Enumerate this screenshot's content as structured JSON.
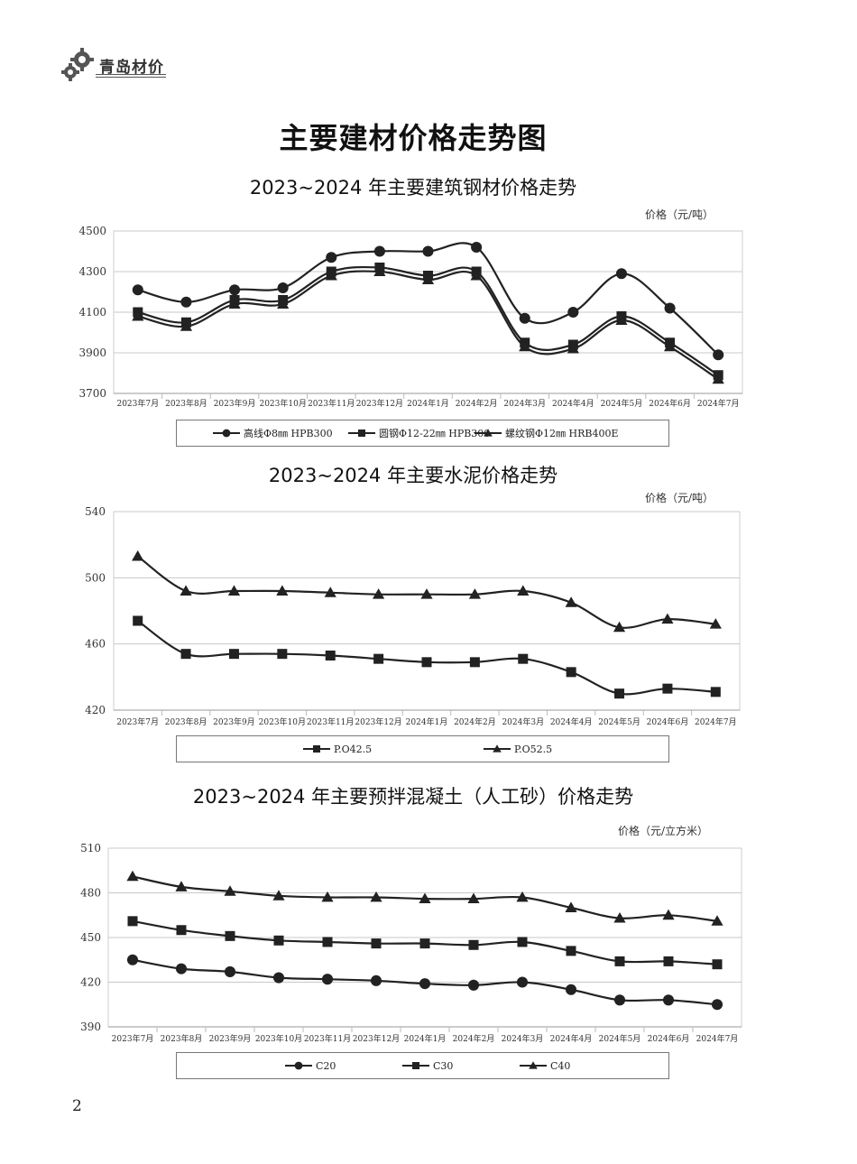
{
  "header": {
    "brand": "青岛材价",
    "logo_icon": "gear-icon"
  },
  "main_title": "主要建材价格走势图",
  "page_number": "2",
  "chart_data": [
    {
      "type": "line",
      "title": "2023~2024 年主要建筑钢材价格走势",
      "unit": "价格（元/吨）",
      "categories": [
        "2023年7月",
        "2023年8月",
        "2023年9月",
        "2023年10月",
        "2023年11月",
        "2023年12月",
        "2024年1月",
        "2024年2月",
        "2024年3月",
        "2024年4月",
        "2024年5月",
        "2024年6月",
        "2024年7月"
      ],
      "ylim": [
        3700,
        4500
      ],
      "yticks": [
        3700,
        3900,
        4100,
        4300,
        4500
      ],
      "grid": true,
      "legend_position": "bottom",
      "series": [
        {
          "name": "高线Φ8㎜ HPB300",
          "marker": "circle",
          "values": [
            4210,
            4150,
            4210,
            4220,
            4370,
            4400,
            4400,
            4420,
            4070,
            4100,
            4290,
            4120,
            3890
          ]
        },
        {
          "name": "圆钢Φ12-22㎜ HPB300",
          "marker": "square",
          "values": [
            4100,
            4050,
            4160,
            4160,
            4300,
            4320,
            4280,
            4300,
            3950,
            3940,
            4080,
            3950,
            3790
          ]
        },
        {
          "name": "螺纹钢Φ12㎜ HRB400E",
          "marker": "triangle",
          "values": [
            4080,
            4030,
            4140,
            4140,
            4280,
            4300,
            4260,
            4280,
            3930,
            3920,
            4060,
            3930,
            3770
          ]
        }
      ]
    },
    {
      "type": "line",
      "title": "2023~2024 年主要水泥价格走势",
      "unit": "价格（元/吨）",
      "categories": [
        "2023年7月",
        "2023年8月",
        "2023年9月",
        "2023年10月",
        "2023年11月",
        "2023年12月",
        "2024年1月",
        "2024年2月",
        "2024年3月",
        "2024年4月",
        "2024年5月",
        "2024年6月",
        "2024年7月"
      ],
      "ylim": [
        420,
        540
      ],
      "yticks": [
        420,
        460,
        500,
        540
      ],
      "grid": true,
      "legend_position": "bottom",
      "series": [
        {
          "name": "P.O42.5",
          "marker": "square",
          "values": [
            474,
            454,
            454,
            454,
            453,
            451,
            449,
            449,
            451,
            443,
            430,
            433,
            431
          ]
        },
        {
          "name": "P.O52.5",
          "marker": "triangle",
          "values": [
            513,
            492,
            492,
            492,
            491,
            490,
            490,
            490,
            492,
            485,
            470,
            475,
            472
          ]
        }
      ]
    },
    {
      "type": "line",
      "title": "2023~2024 年主要预拌混凝土（人工砂）价格走势",
      "unit": "价格（元/立方米）",
      "categories": [
        "2023年7月",
        "2023年8月",
        "2023年9月",
        "2023年10月",
        "2023年11月",
        "2023年12月",
        "2024年1月",
        "2024年2月",
        "2024年3月",
        "2024年4月",
        "2024年5月",
        "2024年6月",
        "2024年7月"
      ],
      "ylim": [
        390,
        510
      ],
      "yticks": [
        390,
        420,
        450,
        480,
        510
      ],
      "grid": true,
      "legend_position": "bottom",
      "series": [
        {
          "name": "C20",
          "marker": "circle",
          "values": [
            435,
            429,
            427,
            423,
            422,
            421,
            419,
            418,
            420,
            415,
            408,
            408,
            405
          ]
        },
        {
          "name": "C30",
          "marker": "square",
          "values": [
            461,
            455,
            451,
            448,
            447,
            446,
            446,
            445,
            447,
            441,
            434,
            434,
            432
          ]
        },
        {
          "name": "C40",
          "marker": "triangle",
          "values": [
            491,
            484,
            481,
            478,
            477,
            477,
            476,
            476,
            477,
            470,
            463,
            465,
            461
          ]
        }
      ]
    }
  ]
}
